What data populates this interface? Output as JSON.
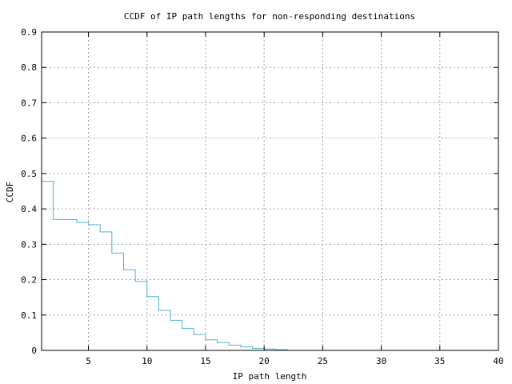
{
  "chart_data": {
    "type": "line",
    "step": true,
    "title": "CCDF of IP path lengths for non-responding destinations",
    "xlabel": "IP path length",
    "ylabel": "CCDF",
    "xlim": [
      1,
      40
    ],
    "ylim": [
      0,
      0.9
    ],
    "xticks": [
      5,
      10,
      15,
      20,
      25,
      30,
      35,
      40
    ],
    "yticks": [
      0,
      0.1,
      0.2,
      0.3,
      0.4,
      0.5,
      0.6,
      0.7,
      0.8,
      0.9
    ],
    "grid": true,
    "series": [
      {
        "color": "#4fb3d9",
        "x": [
          1,
          2,
          3,
          4,
          5,
          6,
          7,
          8,
          9,
          10,
          11,
          12,
          13,
          14,
          15,
          16,
          17,
          18,
          19,
          20,
          21,
          22
        ],
        "y": [
          0.478,
          0.37,
          0.37,
          0.362,
          0.355,
          0.335,
          0.275,
          0.228,
          0.195,
          0.152,
          0.113,
          0.085,
          0.062,
          0.045,
          0.03,
          0.022,
          0.015,
          0.01,
          0.006,
          0.004,
          0.002,
          0.0
        ]
      }
    ]
  }
}
